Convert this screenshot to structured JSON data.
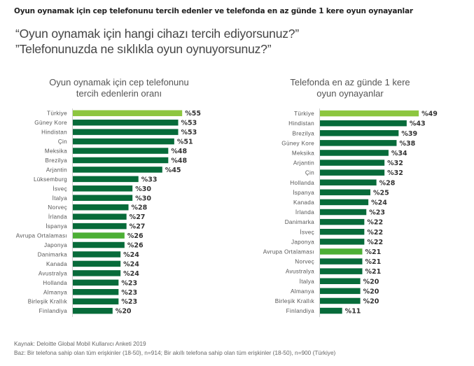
{
  "heading": "Oyun oynamak için cep telefonunu tercih edenler ve telefonda en az günde 1 kere oyun oynayanlar",
  "questions": [
    "“Oyun oynamak için hangi cihazı tercih ediyorsunuz?”",
    "”Telefonunuzda ne sıklıkla oyun oynuyorsunuz?”"
  ],
  "colors": {
    "highlight_turkey": "#8dc63f",
    "highlight_europe": "#4caf35",
    "bar": "#076b3a"
  },
  "chart_data": [
    {
      "type": "bar",
      "orientation": "horizontal",
      "title": "Oyun oynamak için cep telefonunu tercih edenlerin oranı",
      "title_lines": [
        "Oyun oynamak için cep telefonunu",
        "tercih edenlerin oranı"
      ],
      "value_prefix": "%",
      "categories": [
        "Türkiye",
        "Güney Kore",
        "Hindistan",
        "Çin",
        "Meksika",
        "Brezilya",
        "Arjantin",
        "Lüksemburg",
        "İsveç",
        "İtalya",
        "Norveç",
        "İrlanda",
        "İspanya",
        "Avrupa Ortalaması",
        "Japonya",
        "Danimarka",
        "Kanada",
        "Avustralya",
        "Hollanda",
        "Almanya",
        "Birleşik Krallık",
        "Finlandiya"
      ],
      "values": [
        55,
        53,
        53,
        51,
        48,
        48,
        45,
        33,
        30,
        30,
        28,
        27,
        27,
        26,
        26,
        24,
        24,
        24,
        23,
        23,
        23,
        20
      ],
      "highlights": {
        "Türkiye": "turkey",
        "Avrupa Ortalaması": "europe"
      }
    },
    {
      "type": "bar",
      "orientation": "horizontal",
      "title": "Telefonda en az günde 1 kere oyun oynayanlar",
      "title_lines": [
        "Telefonda en az günde 1 kere",
        "oyun oynayanlar"
      ],
      "value_prefix": "%",
      "categories": [
        "Türkiye",
        "Hindistan",
        "Brezilya",
        "Güney Kore",
        "Meksika",
        "Arjantin",
        "Çin",
        "Hollanda",
        "İspanya",
        "Kanada",
        "İrlanda",
        "Danimarka",
        "İsveç",
        "Japonya",
        "Avrupa Ortalaması",
        "Norveç",
        "Avustralya",
        "İtalya",
        "Almanya",
        "Birleşik Krallık",
        "Finlandiya"
      ],
      "values": [
        49,
        43,
        39,
        38,
        34,
        32,
        32,
        28,
        25,
        24,
        23,
        22,
        22,
        22,
        21,
        21,
        21,
        20,
        20,
        20,
        11
      ],
      "highlights": {
        "Türkiye": "turkey",
        "Avrupa Ortalaması": "europe"
      }
    }
  ],
  "footer": {
    "source": "Kaynak: Deloitte Global Mobil Kullanıcı Anketi 2019",
    "base": "Baz: Bir telefona sahip olan tüm erişkinler (18-50), n=914; Bir akıllı telefona sahip olan tüm erişkinler (18-50), n=900 (Türkiye)"
  }
}
